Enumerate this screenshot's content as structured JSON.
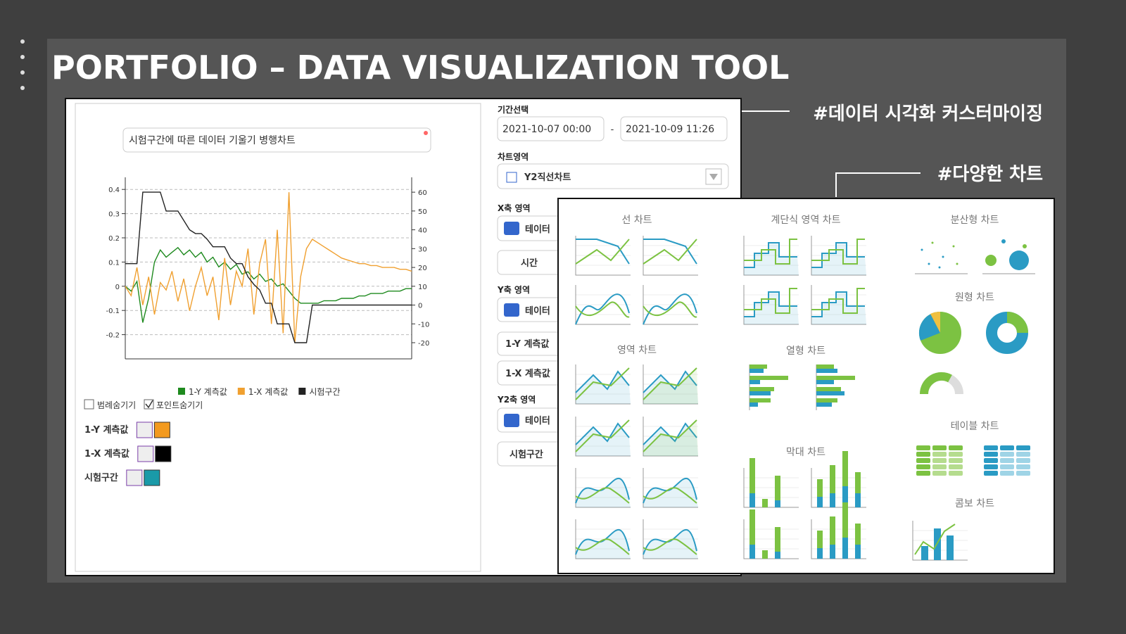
{
  "header": {
    "title": "PORTFOLIO – DATA VISUALIZATION TOOL"
  },
  "annotations": {
    "customizing": "#데이터 시각화 커스터마이징",
    "various": "#다양한 차트"
  },
  "chart_data": {
    "type": "line",
    "title": "시험구간에 따른 데이터 기울기 병행차트",
    "ylim": [
      -0.3,
      0.45
    ],
    "yticks": [
      -0.2,
      -0.1,
      0,
      0.1,
      0.2,
      0.3,
      0.4
    ],
    "y2lim": [
      -28.6,
      67.9
    ],
    "y2ticks": [
      -20,
      -10,
      0,
      10,
      20,
      30,
      40,
      50,
      60
    ],
    "grid": true,
    "series": [
      {
        "name": "1-Y 계측값",
        "color": "#1e8a1e",
        "values": [
          0,
          -0.02,
          0.02,
          -0.15,
          -0.05,
          0.1,
          0.15,
          0.12,
          0.14,
          0.16,
          0.13,
          0.15,
          0.12,
          0.14,
          0.1,
          0.12,
          0.08,
          0.1,
          0.07,
          0.09,
          0.05,
          0.06,
          0.03,
          0.05,
          0.02,
          0.03,
          0,
          0.01,
          -0.02,
          -0.05,
          -0.07,
          -0.07,
          -0.07,
          -0.07,
          -0.06,
          -0.06,
          -0.06,
          -0.05,
          -0.05,
          -0.05,
          -0.04,
          -0.04,
          -0.03,
          -0.03,
          -0.03,
          -0.02,
          -0.02,
          -0.02,
          -0.01,
          -0.01
        ]
      },
      {
        "name": "1-X 계측값",
        "color": "#f0a030",
        "axis": "y2",
        "values": [
          10,
          5,
          20,
          0,
          15,
          -5,
          12,
          8,
          18,
          2,
          14,
          -3,
          10,
          20,
          5,
          15,
          -8,
          25,
          0,
          18,
          10,
          30,
          -5,
          22,
          35,
          -10,
          40,
          -15,
          60,
          -20,
          15,
          30,
          35,
          33,
          31,
          29,
          27,
          25,
          24,
          23,
          22,
          22,
          21,
          21,
          20,
          20,
          20,
          19,
          19,
          18
        ]
      },
      {
        "name": "시험구간",
        "color": "#222222",
        "axis": "y2",
        "values": [
          22,
          22,
          22,
          60,
          60,
          60,
          60,
          50,
          50,
          50,
          45,
          40,
          38,
          38,
          35,
          31,
          31,
          31,
          25,
          22,
          22,
          15,
          11,
          8,
          1,
          1,
          -10,
          -10,
          -10,
          -20,
          -20,
          -20,
          0,
          0,
          0,
          0,
          0,
          0,
          0,
          0,
          0,
          0,
          0,
          0,
          0,
          0,
          0,
          0,
          0,
          0
        ]
      }
    ]
  },
  "chart_options": {
    "hide_legend": "범례숨기기",
    "hide_points": "포인트숨기기",
    "rows": [
      {
        "label": "1-Y 계측값",
        "color": "#f39a1e"
      },
      {
        "label": "1-X 계측값",
        "color": "#000000"
      },
      {
        "label": "시험구간",
        "color": "#1a9aa8"
      }
    ]
  },
  "settings": {
    "period_label": "기간선택",
    "start": "2021-10-07 00:00",
    "separator": "-",
    "end": "2021-10-09 11:26",
    "chart_area_label": "차트영역",
    "chart_type": "Y2직선차트",
    "x_axis_label": "X축 영역",
    "x_axis_source": "테이터",
    "x_axis_field": "시간",
    "y_axis_label": "Y축 영역",
    "y_axis_source": "테이터",
    "y_axis_fields": [
      "1-Y 계측값",
      "1-X 계측값"
    ],
    "y2_axis_label": "Y2축 영역",
    "y2_axis_source": "테이터",
    "y2_axis_field": "시험구간"
  },
  "gallery": {
    "line": "선 차트",
    "step_area": "계단식 영역 차트",
    "scatter": "분산형 차트",
    "pie": "원형 차트",
    "area": "영역 차트",
    "column": "열형 차트",
    "table": "테이블 차트",
    "bar": "막대 차트",
    "combo": "콤보 차트"
  }
}
